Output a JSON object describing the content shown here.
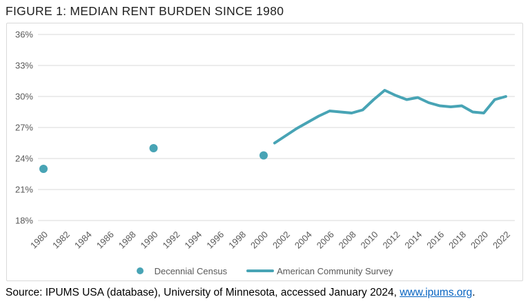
{
  "title": "FIGURE 1: MEDIAN RENT BURDEN SINCE 1980",
  "colors": {
    "accent_teal": "#48a4b5",
    "grid": "#d9d9d9",
    "box_border": "#d9d9d9",
    "axis_text": "#595959",
    "title_text": "#1f1f1f",
    "link_blue": "#0563c1",
    "source_text": "#000000"
  },
  "legend": {
    "items": [
      {
        "swatch": "dot",
        "label": "Decennial Census"
      },
      {
        "swatch": "line",
        "label": "American Community Survey"
      }
    ]
  },
  "source": {
    "prefix": "Source: IPUMS USA (database), University of Minnesota, accessed January 2024, ",
    "link_text": "www.ipums.org",
    "suffix": "."
  },
  "chart_data": {
    "type": "line",
    "title": "FIGURE 1: MEDIAN RENT BURDEN SINCE 1980",
    "xlabel": "",
    "ylabel": "",
    "ylim": [
      18,
      36
    ],
    "yticks": [
      18,
      21,
      24,
      27,
      30,
      33,
      36
    ],
    "ytick_suffix": "%",
    "xticks": [
      1980,
      1982,
      1984,
      1986,
      1988,
      1990,
      1992,
      1994,
      1996,
      1998,
      2000,
      2002,
      2004,
      2006,
      2008,
      2010,
      2012,
      2014,
      2016,
      2018,
      2020,
      2022
    ],
    "grid": "horizontal",
    "legend_position": "bottom",
    "series": [
      {
        "name": "Decennial Census",
        "type": "scatter",
        "x": [
          1980,
          1990,
          2000
        ],
        "y": [
          23.0,
          25.0,
          24.3
        ]
      },
      {
        "name": "American Community Survey",
        "type": "line",
        "x": [
          2001,
          2002,
          2003,
          2004,
          2005,
          2006,
          2007,
          2008,
          2009,
          2010,
          2011,
          2012,
          2013,
          2014,
          2015,
          2016,
          2017,
          2018,
          2019,
          2020,
          2021,
          2022
        ],
        "y": [
          25.5,
          26.2,
          26.9,
          27.5,
          28.1,
          28.6,
          28.5,
          28.4,
          28.7,
          29.7,
          30.6,
          30.1,
          29.7,
          29.9,
          29.4,
          29.1,
          29.0,
          29.1,
          28.5,
          28.4,
          29.7,
          30.0
        ]
      }
    ]
  }
}
